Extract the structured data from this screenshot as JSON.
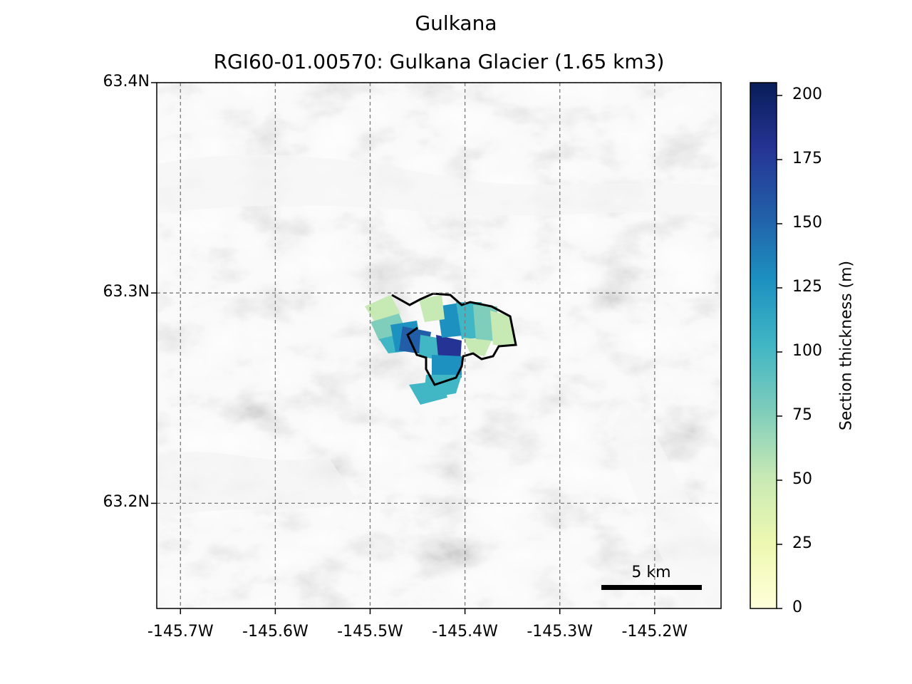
{
  "figure": {
    "suptitle": "Gulkana",
    "title": "RGI60-01.00570: Gulkana Glacier (1.65 km3)"
  },
  "map": {
    "x_ticks": [
      "-145.7W",
      "-145.6W",
      "-145.5W",
      "-145.4W",
      "-145.3W",
      "-145.2W"
    ],
    "x_tick_values": [
      -145.7,
      -145.6,
      -145.5,
      -145.4,
      -145.3,
      -145.2
    ],
    "x_range": [
      -145.725,
      -145.13
    ],
    "y_ticks": [
      "63.4N",
      "63.3N",
      "63.2N"
    ],
    "y_tick_values": [
      63.4,
      63.3,
      63.2
    ],
    "y_range": [
      63.15,
      63.4
    ],
    "grid": "dashed",
    "background": "hillshade",
    "scale_bar": {
      "label": "5 km",
      "length_km": 5
    },
    "outline_color": "#000000"
  },
  "colorbar": {
    "label": "Section thickness (m)",
    "ticks": [
      "0",
      "25",
      "50",
      "75",
      "100",
      "125",
      "150",
      "175",
      "200"
    ],
    "tick_values": [
      0,
      25,
      50,
      75,
      100,
      125,
      150,
      175,
      200
    ],
    "range": [
      0,
      205
    ],
    "colormap": "YlGnBu",
    "colors": [
      "#ffffd9",
      "#edf8b1",
      "#c7e9b4",
      "#7fcdbb",
      "#41b6c4",
      "#1d91c0",
      "#225ea8",
      "#253494",
      "#081d58"
    ]
  }
}
